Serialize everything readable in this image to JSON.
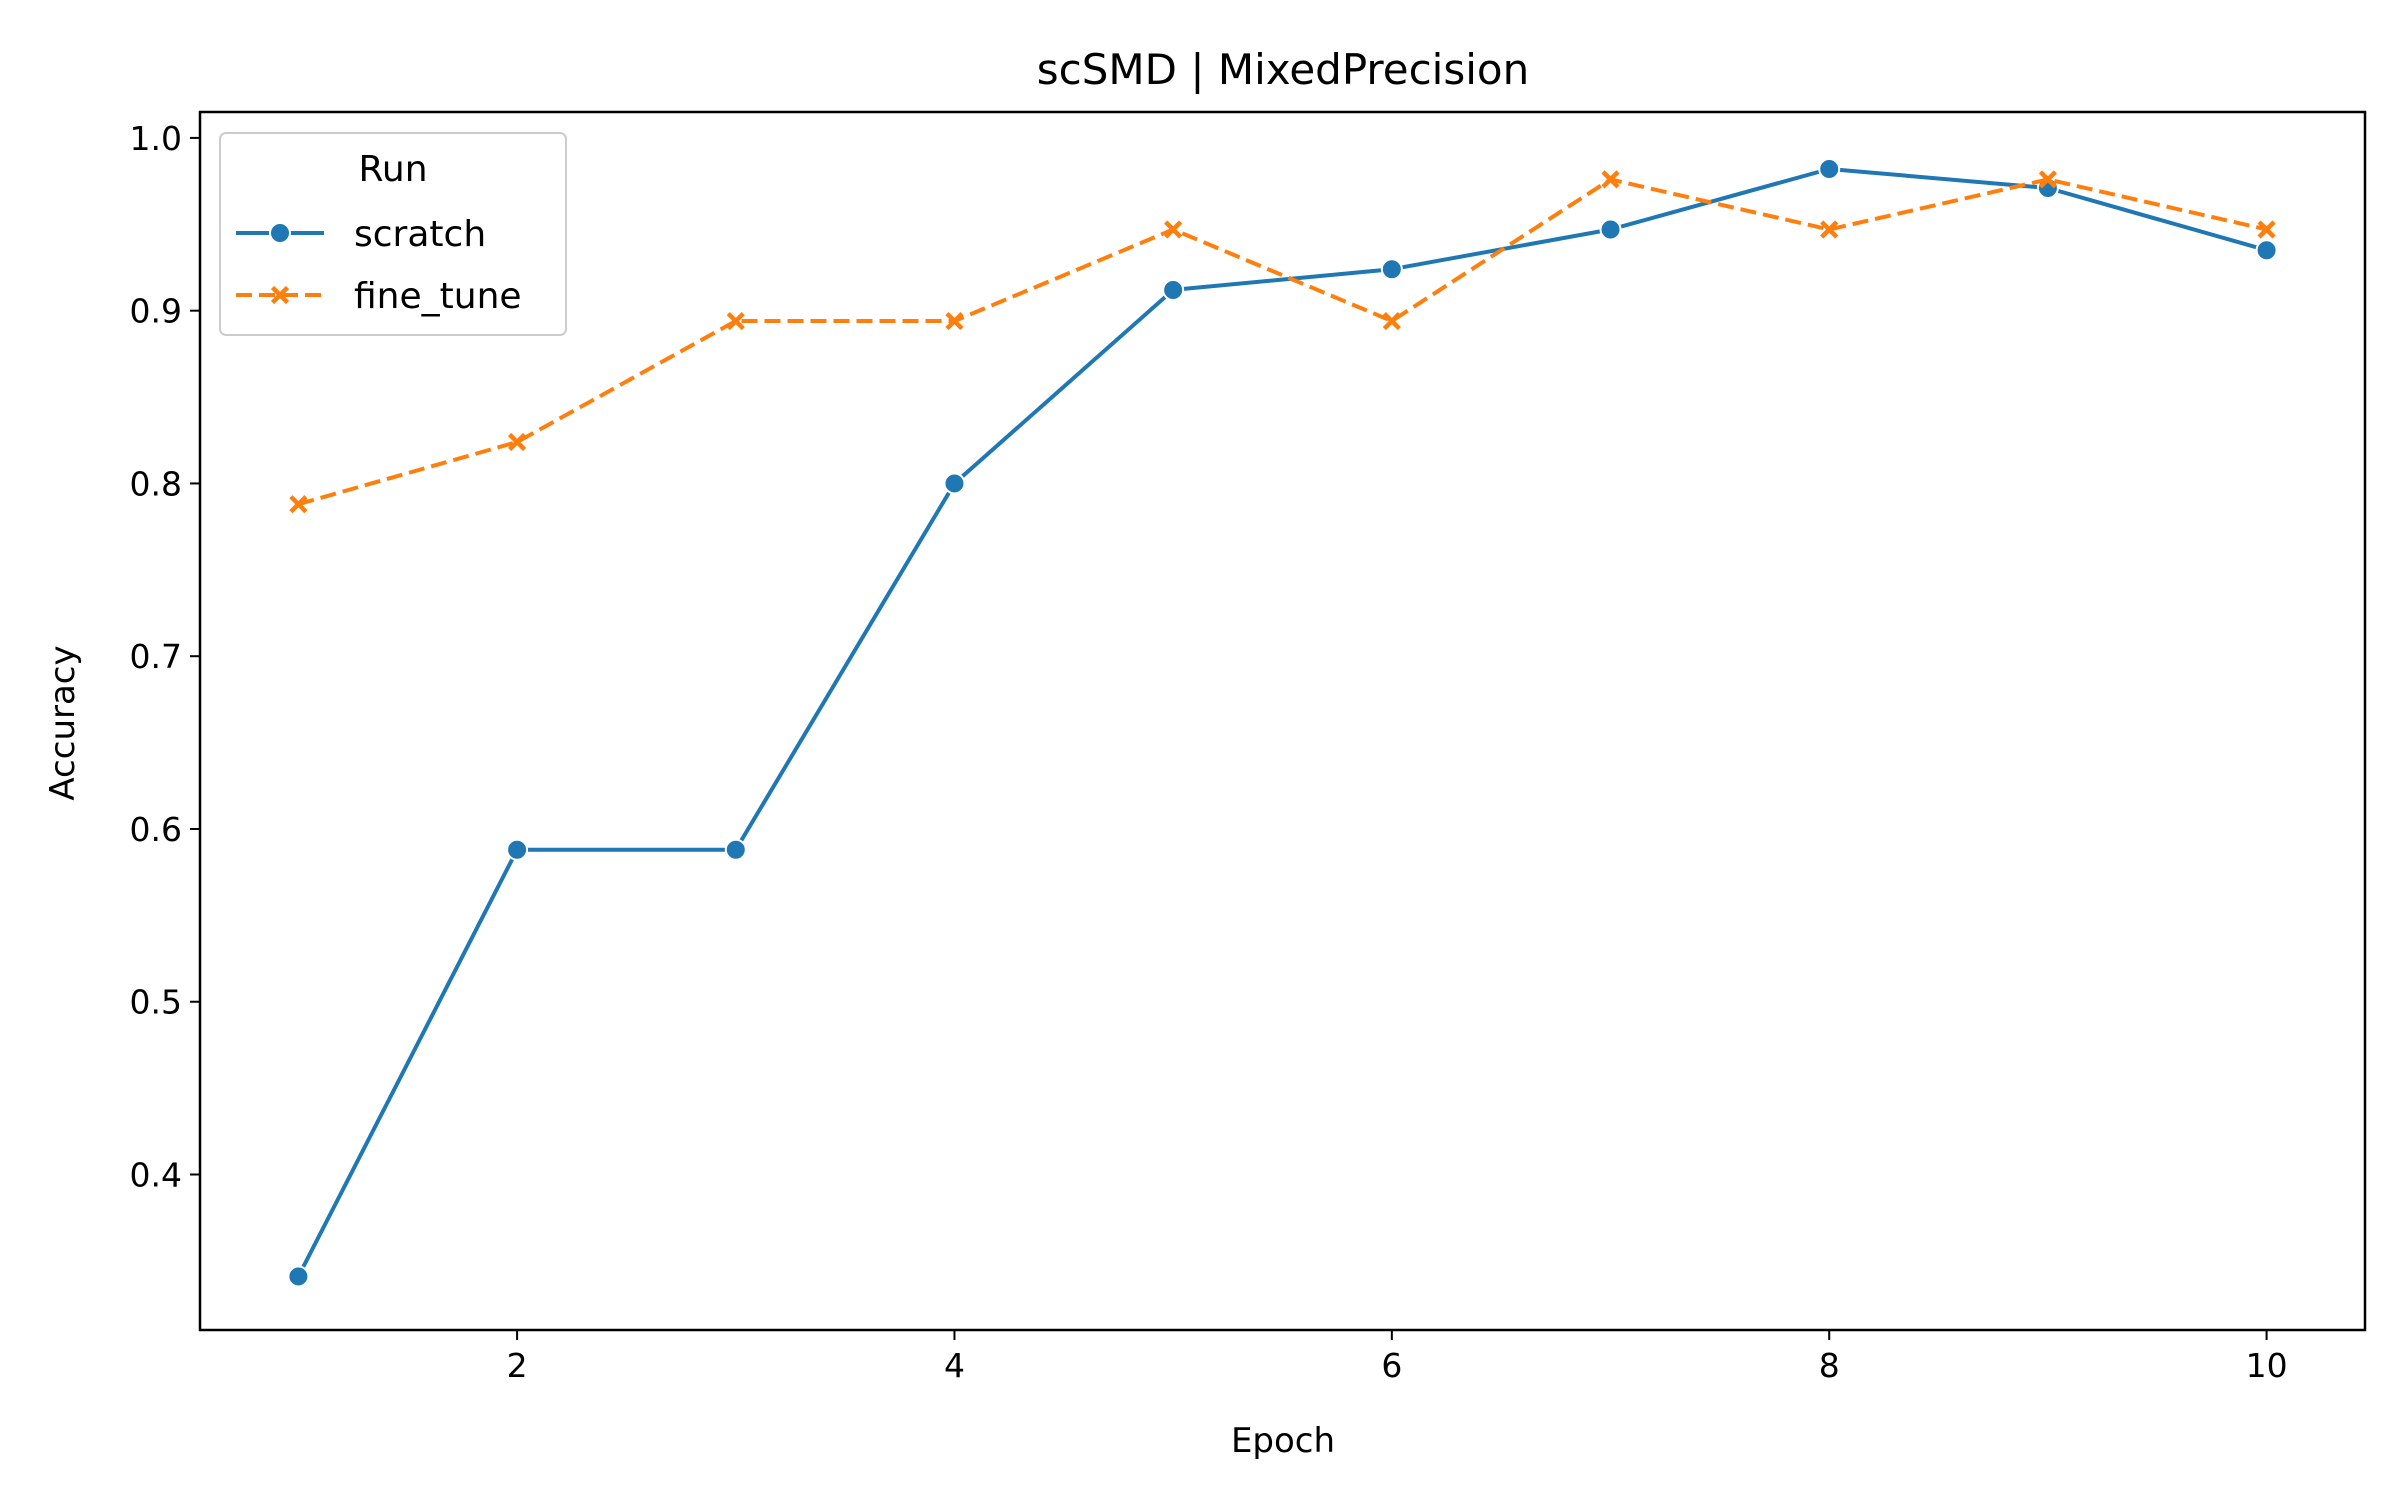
{
  "chart_data": {
    "type": "line",
    "title": "scSMD | MixedPrecision",
    "xlabel": "Epoch",
    "ylabel": "Accuracy",
    "x": [
      1,
      2,
      3,
      4,
      5,
      6,
      7,
      8,
      9,
      10
    ],
    "xlim": [
      0.55,
      10.45
    ],
    "ylim": [
      0.31,
      1.015
    ],
    "xticks": [
      2,
      4,
      6,
      8,
      10
    ],
    "yticks": [
      0.4,
      0.5,
      0.6,
      0.7,
      0.8,
      0.9,
      1.0
    ],
    "xtick_labels": [
      "2",
      "4",
      "6",
      "8",
      "10"
    ],
    "ytick_labels": [
      "0.4",
      "0.5",
      "0.6",
      "0.7",
      "0.8",
      "0.9",
      "1.0"
    ],
    "grid": false,
    "legend": {
      "title": "Run",
      "placement": "top-left"
    },
    "series": [
      {
        "name": "scratch",
        "color": "#1f77b4",
        "marker": "circle",
        "line_style": "solid",
        "values": [
          0.341,
          0.588,
          0.588,
          0.8,
          0.912,
          0.924,
          0.947,
          0.982,
          0.971,
          0.935
        ]
      },
      {
        "name": "fine_tune",
        "color": "#ff7f0e",
        "marker": "x",
        "line_style": "dashed",
        "values": [
          0.788,
          0.824,
          0.894,
          0.894,
          0.947,
          0.894,
          0.976,
          0.947,
          0.976,
          0.947
        ]
      }
    ]
  }
}
